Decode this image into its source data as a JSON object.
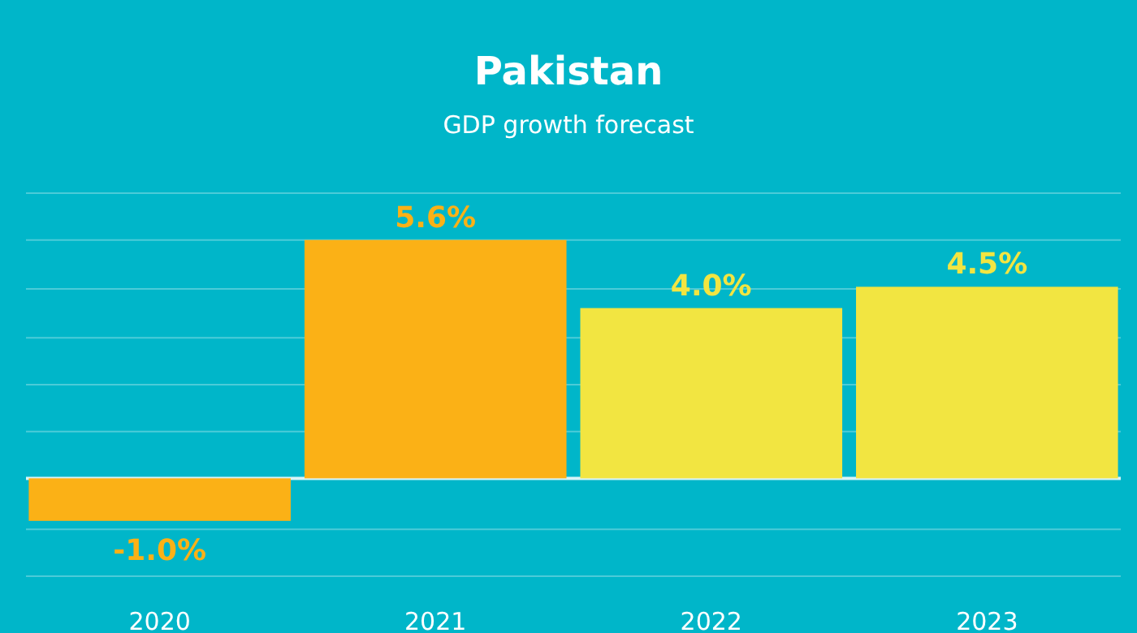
{
  "chart_data": {
    "type": "bar",
    "title": "Pakistan",
    "subtitle": "GDP growth forecast",
    "categories": [
      "2020",
      "2021",
      "2022",
      "2023"
    ],
    "values": [
      -1.0,
      5.6,
      4.0,
      4.5
    ],
    "colors": [
      "#fbb116",
      "#fbb116",
      "#f2e541",
      "#f2e541"
    ],
    "value_labels": [
      "-1.0%",
      "5.6%",
      "4.0%",
      "4.5%"
    ],
    "ylim": [
      -2.3,
      6.7
    ],
    "yticks": [
      {
        "value": -2.3,
        "label": null
      },
      {
        "value": -1.2,
        "label": null
      },
      {
        "value": 0,
        "label": null
      },
      {
        "value": 1.1,
        "label": null
      },
      {
        "value": 2.2,
        "label": null
      },
      {
        "value": 3.3,
        "label": null
      },
      {
        "value": 4.45,
        "label": null
      },
      {
        "value": 5.6,
        "label": null
      },
      {
        "value": 6.7,
        "label": null
      }
    ],
    "grid": "y",
    "tick_labels": "x"
  }
}
